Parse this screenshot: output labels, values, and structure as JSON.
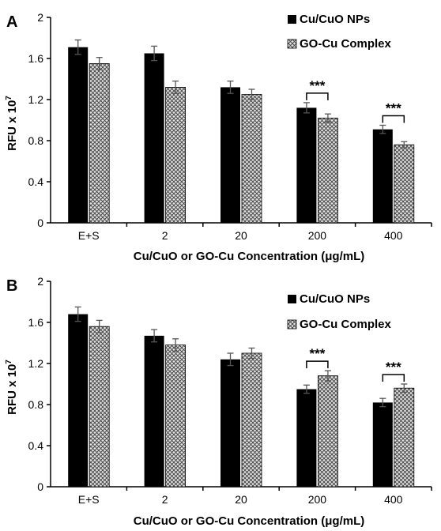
{
  "chart_data": [
    {
      "type": "bar",
      "panel_label": "A",
      "categories": [
        "E+S",
        "2",
        "20",
        "200",
        "400"
      ],
      "series": [
        {
          "name": "Cu/CuO NPs",
          "values": [
            1.71,
            1.65,
            1.32,
            1.12,
            0.91
          ],
          "errors": [
            0.07,
            0.07,
            0.06,
            0.05,
            0.04
          ],
          "color": "#000000",
          "pattern": "solid"
        },
        {
          "name": "GO-Cu Complex",
          "values": [
            1.55,
            1.32,
            1.25,
            1.02,
            0.76
          ],
          "errors": [
            0.06,
            0.06,
            0.05,
            0.04,
            0.03
          ],
          "color": "#d0d0d0",
          "pattern": "crosshatch"
        }
      ],
      "significance": [
        {
          "category": "200",
          "label": "***"
        },
        {
          "category": "400",
          "label": "***"
        }
      ],
      "ylabel_base": "RFU x 10",
      "ylabel_exp": "7",
      "xlabel": "Cu/CuO or GO-Cu Concentration (μg/mL)",
      "ylim": [
        0,
        2
      ],
      "yticks": [
        "0",
        "0.4",
        "0.8",
        "1.2",
        "1.6",
        "2"
      ],
      "legend_position": "top-right",
      "grid": false
    },
    {
      "type": "bar",
      "panel_label": "B",
      "categories": [
        "E+S",
        "2",
        "20",
        "200",
        "400"
      ],
      "series": [
        {
          "name": "Cu/CuO NPs",
          "values": [
            1.68,
            1.47,
            1.24,
            0.95,
            0.82
          ],
          "errors": [
            0.07,
            0.06,
            0.06,
            0.04,
            0.04
          ],
          "color": "#000000",
          "pattern": "solid"
        },
        {
          "name": "GO-Cu Complex",
          "values": [
            1.56,
            1.38,
            1.3,
            1.08,
            0.96
          ],
          "errors": [
            0.06,
            0.06,
            0.05,
            0.05,
            0.04
          ],
          "color": "#d0d0d0",
          "pattern": "crosshatch"
        }
      ],
      "significance": [
        {
          "category": "200",
          "label": "***"
        },
        {
          "category": "400",
          "label": "***"
        }
      ],
      "ylabel_base": "RFU x 10",
      "ylabel_exp": "7",
      "xlabel": "Cu/CuO or GO-Cu Concentration (μg/mL)",
      "ylim": [
        0,
        2
      ],
      "yticks": [
        "0",
        "0.4",
        "0.8",
        "1.2",
        "1.6",
        "2"
      ],
      "legend_position": "top-right",
      "grid": false
    }
  ]
}
